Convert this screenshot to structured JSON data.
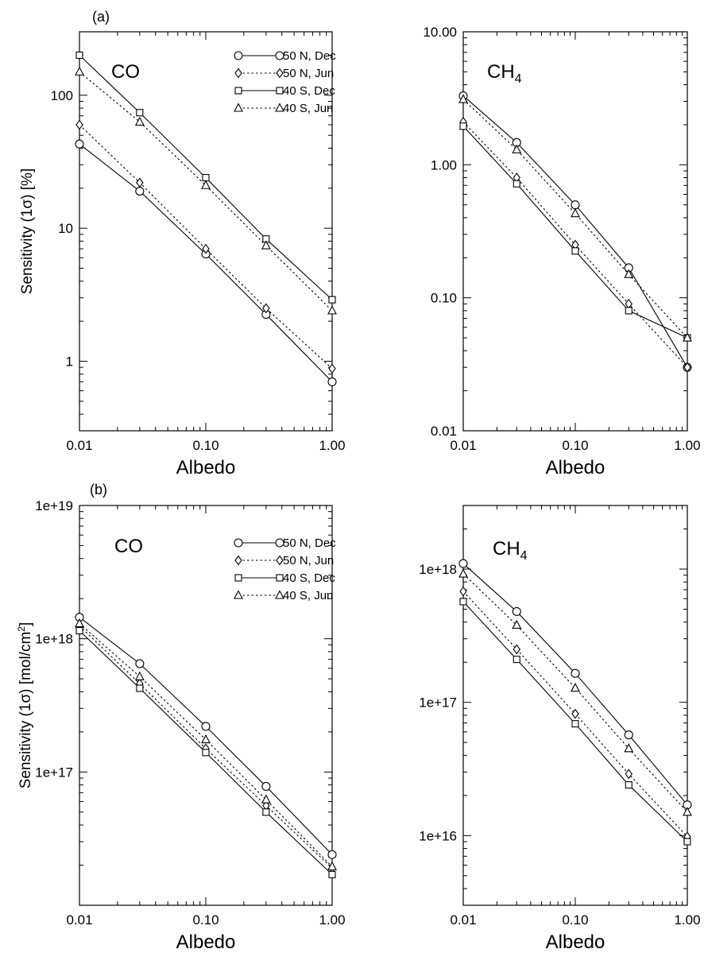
{
  "chart_data": [
    {
      "type": "line",
      "panel_tag": "(a)",
      "species": "CO",
      "xlabel": "Albedo",
      "ylabel": "Sensitivity (1σ) [%]",
      "x_scale": "log",
      "y_scale": "log",
      "xlim": [
        0.01,
        1.0
      ],
      "ylim": [
        0.3,
        300
      ],
      "x_ticks": [
        "0.01",
        "0.10",
        "1.00"
      ],
      "y_ticks": [
        {
          "v": 1,
          "label": "1"
        },
        {
          "v": 10,
          "label": "10"
        },
        {
          "v": 100,
          "label": "100"
        }
      ],
      "legend_position": "top-right",
      "x": [
        0.01,
        0.03,
        0.1,
        0.3,
        1.0
      ],
      "series": [
        {
          "name": "50 N, Dec",
          "marker": "circle",
          "dash": "solid",
          "values": [
            43,
            19,
            6.4,
            2.25,
            0.7
          ]
        },
        {
          "name": "50 N, Jun",
          "marker": "diamond",
          "dash": "dotted",
          "values": [
            60,
            22,
            7.0,
            2.5,
            0.88
          ]
        },
        {
          "name": "40 S, Dec",
          "marker": "square",
          "dash": "solid",
          "values": [
            200,
            74,
            24,
            8.3,
            2.9
          ]
        },
        {
          "name": "40 S, Jun",
          "marker": "triangle",
          "dash": "dotted",
          "values": [
            150,
            63,
            21,
            7.4,
            2.4
          ]
        }
      ]
    },
    {
      "type": "line",
      "species": "CH",
      "species_sub": "4",
      "xlabel": "Albedo",
      "x_scale": "log",
      "y_scale": "log",
      "xlim": [
        0.01,
        1.0
      ],
      "ylim": [
        0.01,
        10
      ],
      "x_ticks": [
        "0.01",
        "0.10",
        "1.00"
      ],
      "y_ticks": [
        {
          "v": 0.01,
          "label": "0.01"
        },
        {
          "v": 0.1,
          "label": "0.10"
        },
        {
          "v": 1,
          "label": "1.00"
        },
        {
          "v": 10,
          "label": "10.00"
        }
      ],
      "x": [
        0.01,
        0.03,
        0.1,
        0.3,
        1.0
      ],
      "series": [
        {
          "name": "50 N, Dec",
          "marker": "circle",
          "dash": "solid",
          "values": [
            3.3,
            1.47,
            0.5,
            0.168,
            0.03
          ]
        },
        {
          "name": "50 N, Jun",
          "marker": "diamond",
          "dash": "dotted",
          "values": [
            2.1,
            0.8,
            0.25,
            0.09,
            0.03
          ]
        },
        {
          "name": "40 S, Dec",
          "marker": "square",
          "dash": "solid",
          "values": [
            1.95,
            0.72,
            0.225,
            0.08,
            0.05
          ]
        },
        {
          "name": "40 S, Jun",
          "marker": "triangle",
          "dash": "dotted",
          "values": [
            3.1,
            1.3,
            0.43,
            0.15,
            0.05
          ]
        }
      ]
    },
    {
      "type": "line",
      "panel_tag": "(b)",
      "species": "CO",
      "xlabel": "Albedo",
      "ylabel": "Sensitivity (1σ) [mol/cm",
      "ylabel_sup": "2",
      "ylabel_end": "]",
      "x_scale": "log",
      "y_scale": "log",
      "xlim": [
        0.01,
        1.0
      ],
      "ylim": [
        1e+16,
        1e+19
      ],
      "x_ticks": [
        "0.01",
        "0.10",
        "1.00"
      ],
      "y_ticks": [
        {
          "v": 1e+17,
          "label": "1e+17"
        },
        {
          "v": 1e+18,
          "label": "1e+18"
        },
        {
          "v": 1e+19,
          "label": "1e+19"
        }
      ],
      "legend_position": "top-right",
      "x": [
        0.01,
        0.03,
        0.1,
        0.3,
        1.0
      ],
      "series": [
        {
          "name": "50 N, Dec",
          "marker": "circle",
          "dash": "solid",
          "values": [
            1.45e+18,
            6.5e+17,
            2.2e+17,
            7.8e+16,
            2.4e+16
          ]
        },
        {
          "name": "50 N, Jun",
          "marker": "diamond",
          "dash": "dotted",
          "values": [
            1.25e+18,
            4.6e+17,
            1.5e+17,
            5.6e+16,
            1.9e+16
          ]
        },
        {
          "name": "40 S, Dec",
          "marker": "square",
          "dash": "solid",
          "values": [
            1.15e+18,
            4.25e+17,
            1.4e+17,
            5e+16,
            1.7e+16
          ]
        },
        {
          "name": "40 S, Jun",
          "marker": "triangle",
          "dash": "dotted",
          "values": [
            1.3e+18,
            5.2e+17,
            1.75e+17,
            6.2e+16,
            1.95e+16
          ]
        }
      ]
    },
    {
      "type": "line",
      "species": "CH",
      "species_sub": "4",
      "xlabel": "Albedo",
      "x_scale": "log",
      "y_scale": "log",
      "xlim": [
        0.01,
        1.0
      ],
      "ylim": [
        3000000000000000.0,
        3e+18
      ],
      "x_ticks": [
        "0.01",
        "0.10",
        "1.00"
      ],
      "y_ticks": [
        {
          "v": 1e+16,
          "label": "1e+16"
        },
        {
          "v": 1e+17,
          "label": "1e+17"
        },
        {
          "v": 1e+18,
          "label": "1e+18"
        }
      ],
      "x": [
        0.01,
        0.03,
        0.1,
        0.3,
        1.0
      ],
      "series": [
        {
          "name": "50 N, Dec",
          "marker": "circle",
          "dash": "solid",
          "values": [
            1.1e+18,
            4.8e+17,
            1.65e+17,
            5.7e+16,
            1.7e+16
          ]
        },
        {
          "name": "50 N, Jun",
          "marker": "diamond",
          "dash": "dotted",
          "values": [
            6.8e+17,
            2.5e+17,
            8.2e+16,
            2.9e+16,
            9800000000000000.0
          ]
        },
        {
          "name": "40 S, Dec",
          "marker": "square",
          "dash": "solid",
          "values": [
            5.7e+17,
            2.1e+17,
            6.9e+16,
            2.4e+16,
            9000000000000000.0
          ]
        },
        {
          "name": "40 S, Jun",
          "marker": "triangle",
          "dash": "dotted",
          "values": [
            9.2e+17,
            3.8e+17,
            1.28e+17,
            4.5e+16,
            1.5e+16
          ]
        }
      ]
    }
  ]
}
